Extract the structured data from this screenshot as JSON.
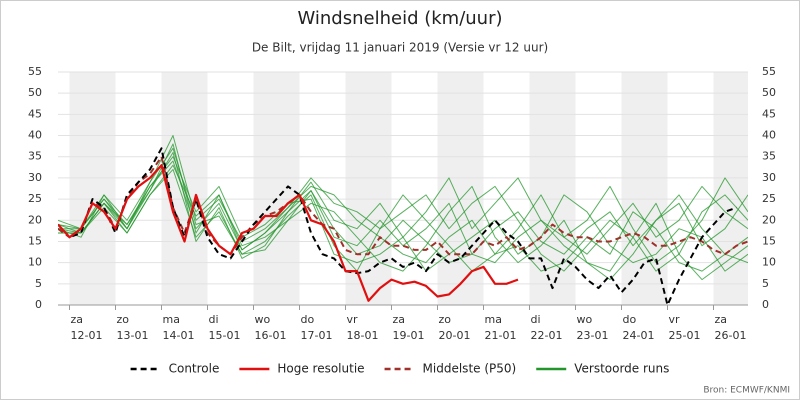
{
  "chart_data": {
    "type": "line",
    "title": "Windsnelheid (km/uur)",
    "subtitle": "De Bilt, vrijdag 11 januari 2019 (Versie vr 12 uur)",
    "source": "Bron: ECMWF/KNMI",
    "xlim": [
      -0.25,
      14.75
    ],
    "xticks": [
      0,
      1,
      2,
      3,
      4,
      5,
      6,
      7,
      8,
      9,
      10,
      11,
      12,
      13,
      14
    ],
    "day_names": [
      "za",
      "zo",
      "ma",
      "di",
      "wo",
      "do",
      "vr",
      "za",
      "zo",
      "ma",
      "di",
      "wo",
      "do",
      "vr",
      "za"
    ],
    "dates": [
      "12-01",
      "13-01",
      "14-01",
      "15-01",
      "16-01",
      "17-01",
      "18-01",
      "19-01",
      "20-01",
      "21-01",
      "22-01",
      "23-01",
      "24-01",
      "25-01",
      "26-01"
    ],
    "shade_alternate_days": true,
    "ylim": [
      0,
      55
    ],
    "yticks": [
      0,
      5,
      10,
      15,
      20,
      25,
      30,
      35,
      40,
      45,
      50,
      55
    ],
    "y_labels_both_sides": true,
    "grid": true,
    "legend": "bottom",
    "ensemble": {
      "name": "Verstoorde runs",
      "color": "#22962a",
      "x": [
        -0.25,
        0.25,
        0.75,
        1.25,
        1.75,
        2.25,
        2.75,
        3.25,
        3.75,
        4.25,
        4.75,
        5.25,
        5.75,
        6.25,
        6.75,
        7.25,
        7.75,
        8.25,
        8.75,
        9.25,
        9.75,
        10.25,
        10.75,
        11.25,
        11.75,
        12.25,
        12.75,
        13.25,
        13.75,
        14.25,
        14.75
      ],
      "members": [
        [
          19,
          17,
          24,
          18,
          28,
          34,
          18,
          24,
          13,
          17,
          22,
          27,
          18,
          12,
          14,
          20,
          15,
          10,
          12,
          18,
          22,
          15,
          12,
          18,
          22,
          14,
          20,
          26,
          18,
          12,
          16
        ],
        [
          18,
          18,
          25,
          19,
          27,
          38,
          17,
          26,
          14,
          16,
          20,
          24,
          22,
          16,
          10,
          8,
          14,
          22,
          28,
          16,
          10,
          14,
          20,
          10,
          8,
          16,
          24,
          12,
          6,
          10,
          14
        ],
        [
          17,
          17,
          23,
          17,
          26,
          32,
          16,
          22,
          12,
          15,
          21,
          26,
          14,
          8,
          18,
          26,
          20,
          14,
          8,
          12,
          18,
          26,
          16,
          20,
          28,
          18,
          10,
          14,
          20,
          30,
          22
        ],
        [
          18,
          16,
          26,
          20,
          29,
          40,
          20,
          25,
          15,
          18,
          23,
          28,
          26,
          20,
          16,
          12,
          10,
          16,
          20,
          12,
          14,
          8,
          10,
          16,
          12,
          22,
          18,
          10,
          8,
          12,
          10
        ],
        [
          19,
          18,
          25,
          18,
          27,
          36,
          15,
          23,
          11,
          14,
          22,
          29,
          20,
          18,
          24,
          16,
          22,
          30,
          18,
          24,
          30,
          20,
          16,
          12,
          18,
          24,
          16,
          20,
          28,
          22,
          18
        ],
        [
          18,
          17,
          24,
          19,
          28,
          35,
          22,
          28,
          16,
          19,
          24,
          25,
          12,
          10,
          12,
          16,
          8,
          12,
          16,
          20,
          12,
          16,
          26,
          22,
          14,
          10,
          12,
          18,
          16,
          8,
          12
        ],
        [
          20,
          18,
          26,
          18,
          29,
          37,
          19,
          21,
          12,
          13,
          20,
          27,
          16,
          14,
          20,
          14,
          18,
          24,
          12,
          10,
          16,
          20,
          14,
          10,
          6,
          12,
          20,
          24,
          14,
          18,
          26
        ],
        [
          17,
          17,
          24,
          17,
          26,
          33,
          21,
          26,
          13,
          17,
          23,
          30,
          24,
          22,
          18,
          22,
          26,
          18,
          24,
          28,
          20,
          12,
          8,
          14,
          20,
          16,
          8,
          12,
          22,
          26,
          20
        ]
      ]
    },
    "series": [
      {
        "name": "Middelste (P50)",
        "color": "#a0302a",
        "dash": true,
        "x": [
          -0.25,
          0,
          0.25,
          0.5,
          0.75,
          1,
          1.25,
          1.5,
          1.75,
          2,
          2.25,
          2.5,
          2.75,
          3,
          3.25,
          3.5,
          3.75,
          4,
          4.25,
          4.5,
          4.75,
          5,
          5.25,
          5.5,
          5.75,
          6,
          6.25,
          6.5,
          6.75,
          7,
          7.25,
          7.5,
          7.75,
          8,
          8.25,
          8.5,
          8.75,
          9,
          9.25,
          9.5,
          9.75,
          10,
          10.25,
          10.5,
          10.75,
          11,
          11.25,
          11.5,
          11.75,
          12,
          12.25,
          12.5,
          12.75,
          13,
          13.25,
          13.5,
          13.75,
          14,
          14.25,
          14.5,
          14.75
        ],
        "values": [
          18,
          16,
          18,
          24,
          23,
          18,
          25,
          29,
          31,
          35,
          23,
          17,
          25,
          17,
          14,
          12,
          16,
          19,
          21,
          22,
          24,
          26,
          22,
          19,
          18,
          13,
          12,
          12,
          16,
          14,
          14,
          13,
          13,
          15,
          12,
          12,
          12,
          15,
          14,
          16,
          13,
          14,
          16,
          19,
          17,
          16,
          16,
          15,
          15,
          16,
          17,
          16,
          14,
          14,
          15,
          16,
          15,
          13,
          12,
          14,
          15
        ]
      },
      {
        "name": "Controle",
        "color": "#000000",
        "dash": true,
        "x": [
          -0.25,
          0,
          0.25,
          0.5,
          0.75,
          1,
          1.25,
          1.5,
          1.75,
          2,
          2.25,
          2.5,
          2.75,
          3,
          3.25,
          3.5,
          3.75,
          4,
          4.25,
          4.5,
          4.75,
          5,
          5.25,
          5.5,
          5.75,
          6,
          6.25,
          6.5,
          6.75,
          7,
          7.25,
          7.5,
          7.75,
          8,
          8.25,
          8.5,
          8.75,
          9,
          9.25,
          9.5,
          9.75,
          10,
          10.25,
          10.5,
          10.75,
          11,
          11.25,
          11.5,
          11.75,
          12,
          12.25,
          12.5,
          12.75,
          13,
          13.25,
          13.5,
          13.75,
          14,
          14.25,
          14.5
        ],
        "values": [
          19,
          16,
          17,
          25,
          23,
          17,
          26,
          29,
          32,
          37,
          23,
          16,
          25,
          16,
          12,
          11,
          15,
          19,
          22,
          25,
          28,
          26,
          17,
          12,
          11,
          8,
          7.5,
          8,
          10,
          11,
          9,
          10,
          8,
          12,
          10,
          11,
          14,
          17,
          20,
          17,
          15,
          11,
          11,
          4,
          11,
          9,
          6,
          4,
          7,
          3,
          6,
          10,
          11,
          0,
          6,
          11,
          16,
          19,
          22,
          23
        ]
      },
      {
        "name": "Hoge resolutie",
        "color": "#e01010",
        "dash": false,
        "x": [
          -0.25,
          0,
          0.25,
          0.5,
          0.75,
          1,
          1.25,
          1.5,
          1.75,
          2,
          2.25,
          2.5,
          2.75,
          3,
          3.25,
          3.5,
          3.75,
          4,
          4.25,
          4.5,
          4.75,
          5,
          5.25,
          5.5,
          5.75,
          6,
          6.25,
          6.5,
          6.75,
          7,
          7.25,
          7.5,
          7.75,
          8,
          8.25,
          8.5,
          8.75,
          9,
          9.25,
          9.5,
          9.75
        ],
        "values": [
          19,
          16,
          18,
          24,
          22,
          18,
          25,
          28,
          30,
          33,
          22,
          15,
          26,
          18,
          14,
          12,
          17,
          18,
          21,
          21,
          24,
          26,
          20,
          19,
          15,
          8,
          8,
          1,
          4,
          6,
          5,
          5.5,
          4.5,
          2,
          2.5,
          5,
          8,
          9,
          5,
          5,
          6
        ]
      }
    ],
    "legend_order": [
      1,
      2,
      0
    ]
  }
}
